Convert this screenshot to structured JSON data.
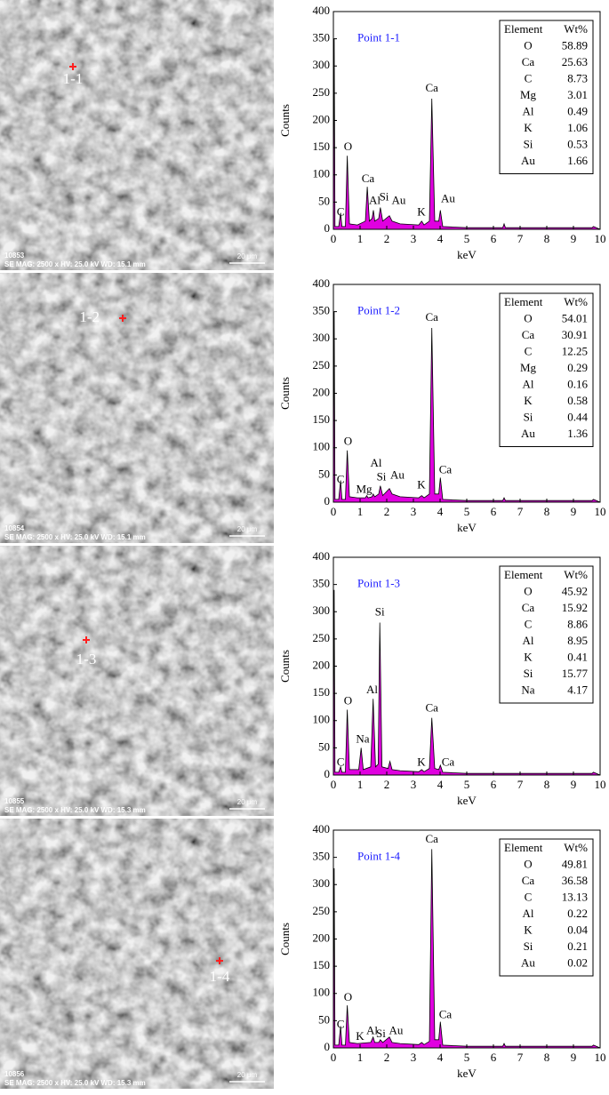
{
  "images": [
    {
      "id": "10853",
      "info": "SE  MAG: 2500 x HV: 25.0 kV  WD: 15.1 mm",
      "scale": "20 μm",
      "point": "1-1"
    },
    {
      "id": "10854",
      "info": "SE  MAG: 2500 x HV: 25.0 kV  WD: 15.1 mm",
      "scale": "20 μm",
      "point": "1-2"
    },
    {
      "id": "10855",
      "info": "SE  MAG: 2500 x HV: 25.0 kV  WD: 15.3 mm",
      "scale": "20 μm",
      "point": "1-3"
    },
    {
      "id": "10856",
      "info": "SE  MAG: 2500 x HV: 25.0 kV  WD: 15.3 mm",
      "scale": "20 μm",
      "point": "1-4"
    }
  ],
  "chart_data": [
    {
      "type": "area",
      "title": "Point 1-1",
      "xlabel": "keV",
      "ylabel": "Counts",
      "color": "#e000e0",
      "x": [
        0,
        0.03,
        0.06,
        0.2,
        0.27,
        0.32,
        0.45,
        0.52,
        0.6,
        0.9,
        1.2,
        1.27,
        1.35,
        1.45,
        1.5,
        1.55,
        1.7,
        1.76,
        1.85,
        2.1,
        2.2,
        2.5,
        3.2,
        3.31,
        3.4,
        3.6,
        3.69,
        3.8,
        3.95,
        4.01,
        4.1,
        5,
        6.35,
        6.4,
        6.45,
        9.7,
        9.75,
        10
      ],
      "values": [
        0,
        350,
        5,
        5,
        30,
        5,
        5,
        135,
        10,
        8,
        15,
        78,
        15,
        20,
        35,
        15,
        20,
        40,
        15,
        25,
        15,
        10,
        8,
        15,
        8,
        15,
        240,
        15,
        15,
        35,
        5,
        3,
        3,
        10,
        3,
        3,
        5,
        0
      ],
      "annotations": [
        {
          "text": "C",
          "x": 0.27,
          "y": 20
        },
        {
          "text": "O",
          "x": 0.55,
          "y": 140
        },
        {
          "text": "Ca",
          "x": 1.3,
          "y": 82
        },
        {
          "text": "Al",
          "x": 1.55,
          "y": 42
        },
        {
          "text": "Si",
          "x": 1.9,
          "y": 48
        },
        {
          "text": "Au",
          "x": 2.45,
          "y": 42
        },
        {
          "text": "K",
          "x": 3.3,
          "y": 20
        },
        {
          "text": "Ca",
          "x": 3.69,
          "y": 248
        },
        {
          "text": "Au",
          "x": 4.3,
          "y": 45
        }
      ],
      "xlim": [
        0,
        10
      ],
      "ylim": [
        0,
        400
      ],
      "xticks": [
        0,
        1,
        2,
        3,
        4,
        5,
        6,
        7,
        8,
        9,
        10
      ],
      "yticks": [
        0,
        50,
        100,
        150,
        200,
        250,
        300,
        350,
        400
      ],
      "table": {
        "header": [
          "Element",
          "Wt%"
        ],
        "rows": [
          [
            "O",
            "58.89"
          ],
          [
            "Ca",
            "25.63"
          ],
          [
            "C",
            "8.73"
          ],
          [
            "Mg",
            "3.01"
          ],
          [
            "Al",
            "0.49"
          ],
          [
            "K",
            "1.06"
          ],
          [
            "Si",
            "0.53"
          ],
          [
            "Au",
            "1.66"
          ]
        ]
      }
    },
    {
      "type": "area",
      "title": "Point 1-2",
      "xlabel": "keV",
      "ylabel": "Counts",
      "color": "#e000e0",
      "x": [
        0,
        0.03,
        0.06,
        0.2,
        0.27,
        0.32,
        0.45,
        0.52,
        0.6,
        0.9,
        1.2,
        1.25,
        1.3,
        1.45,
        1.49,
        1.55,
        1.7,
        1.76,
        1.85,
        2.1,
        2.2,
        2.5,
        3.2,
        3.31,
        3.4,
        3.6,
        3.69,
        3.8,
        3.95,
        4.01,
        4.1,
        5,
        6.35,
        6.4,
        6.45,
        9.7,
        9.75,
        10
      ],
      "values": [
        0,
        350,
        5,
        5,
        40,
        5,
        5,
        95,
        10,
        8,
        8,
        12,
        8,
        10,
        15,
        10,
        15,
        30,
        12,
        25,
        15,
        10,
        8,
        12,
        8,
        15,
        320,
        15,
        15,
        45,
        5,
        3,
        3,
        8,
        3,
        3,
        5,
        0
      ],
      "annotations": [
        {
          "text": "C",
          "x": 0.27,
          "y": 30
        },
        {
          "text": "O",
          "x": 0.55,
          "y": 100
        },
        {
          "text": "Mg",
          "x": 1.15,
          "y": 12
        },
        {
          "text": "Al",
          "x": 1.6,
          "y": 60
        },
        {
          "text": "Si",
          "x": 1.8,
          "y": 35
        },
        {
          "text": "Au",
          "x": 2.4,
          "y": 38
        },
        {
          "text": "K",
          "x": 3.3,
          "y": 20
        },
        {
          "text": "Ca",
          "x": 3.69,
          "y": 328
        },
        {
          "text": "Ca",
          "x": 4.2,
          "y": 48
        }
      ],
      "xlim": [
        0,
        10
      ],
      "ylim": [
        0,
        400
      ],
      "xticks": [
        0,
        1,
        2,
        3,
        4,
        5,
        6,
        7,
        8,
        9,
        10
      ],
      "yticks": [
        0,
        50,
        100,
        150,
        200,
        250,
        300,
        350,
        400
      ],
      "table": {
        "header": [
          "Element",
          "Wt%"
        ],
        "rows": [
          [
            "O",
            "54.01"
          ],
          [
            "Ca",
            "30.91"
          ],
          [
            "C",
            "12.25"
          ],
          [
            "Mg",
            "0.29"
          ],
          [
            "Al",
            "0.16"
          ],
          [
            "K",
            "0.58"
          ],
          [
            "Si",
            "0.44"
          ],
          [
            "Au",
            "1.36"
          ]
        ]
      }
    },
    {
      "type": "area",
      "title": "Point 1-3",
      "xlabel": "keV",
      "ylabel": "Counts",
      "color": "#e000e0",
      "x": [
        0,
        0.03,
        0.06,
        0.2,
        0.27,
        0.32,
        0.45,
        0.52,
        0.6,
        0.95,
        1.04,
        1.12,
        1.4,
        1.49,
        1.58,
        1.68,
        1.74,
        1.82,
        2.05,
        2.12,
        2.2,
        2.5,
        3.2,
        3.31,
        3.4,
        3.6,
        3.69,
        3.8,
        3.95,
        4.01,
        4.1,
        5,
        9.7,
        9.75,
        10
      ],
      "values": [
        0,
        340,
        5,
        5,
        15,
        5,
        5,
        120,
        10,
        10,
        50,
        10,
        15,
        140,
        15,
        20,
        280,
        15,
        12,
        25,
        10,
        8,
        6,
        10,
        6,
        12,
        105,
        12,
        10,
        18,
        5,
        3,
        3,
        5,
        0
      ],
      "annotations": [
        {
          "text": "C",
          "x": 0.27,
          "y": 12
        },
        {
          "text": "O",
          "x": 0.55,
          "y": 125
        },
        {
          "text": "Na",
          "x": 1.1,
          "y": 55
        },
        {
          "text": "Al",
          "x": 1.45,
          "y": 145
        },
        {
          "text": "Si",
          "x": 1.74,
          "y": 288
        },
        {
          "text": "K",
          "x": 3.3,
          "y": 12
        },
        {
          "text": "Ca",
          "x": 3.69,
          "y": 112
        },
        {
          "text": "Ca",
          "x": 4.3,
          "y": 12
        }
      ],
      "xlim": [
        0,
        10
      ],
      "ylim": [
        0,
        400
      ],
      "xticks": [
        0,
        1,
        2,
        3,
        4,
        5,
        6,
        7,
        8,
        9,
        10
      ],
      "yticks": [
        0,
        50,
        100,
        150,
        200,
        250,
        300,
        350,
        400
      ],
      "table": {
        "header": [
          "Element",
          "Wt%"
        ],
        "rows": [
          [
            "O",
            "45.92"
          ],
          [
            "Ca",
            "15.92"
          ],
          [
            "C",
            "8.86"
          ],
          [
            "Al",
            "8.95"
          ],
          [
            "K",
            "0.41"
          ],
          [
            "Si",
            "15.77"
          ],
          [
            "Na",
            "4.17"
          ]
        ]
      }
    },
    {
      "type": "area",
      "title": "Point 1-4",
      "xlabel": "keV",
      "ylabel": "Counts",
      "color": "#e000e0",
      "x": [
        0,
        0.03,
        0.06,
        0.2,
        0.27,
        0.32,
        0.45,
        0.52,
        0.6,
        0.9,
        1.4,
        1.49,
        1.55,
        1.7,
        1.76,
        1.85,
        2.1,
        2.2,
        2.5,
        3.2,
        3.31,
        3.4,
        3.6,
        3.69,
        3.8,
        3.95,
        4.01,
        4.1,
        5,
        6.35,
        6.4,
        6.45,
        9.7,
        9.75,
        10
      ],
      "values": [
        0,
        330,
        5,
        5,
        40,
        5,
        5,
        78,
        10,
        8,
        10,
        20,
        10,
        10,
        15,
        10,
        20,
        10,
        8,
        6,
        10,
        6,
        12,
        365,
        15,
        15,
        48,
        5,
        3,
        3,
        8,
        3,
        3,
        5,
        0
      ],
      "annotations": [
        {
          "text": "C",
          "x": 0.27,
          "y": 32
        },
        {
          "text": "O",
          "x": 0.55,
          "y": 82
        },
        {
          "text": "K",
          "x": 1.0,
          "y": 10
        },
        {
          "text": "Al",
          "x": 1.45,
          "y": 20
        },
        {
          "text": "Si",
          "x": 1.78,
          "y": 15
        },
        {
          "text": "Au",
          "x": 2.35,
          "y": 20
        },
        {
          "text": "Ca",
          "x": 3.69,
          "y": 372
        },
        {
          "text": "Ca",
          "x": 4.2,
          "y": 50
        }
      ],
      "xlim": [
        0,
        10
      ],
      "ylim": [
        0,
        400
      ],
      "xticks": [
        0,
        1,
        2,
        3,
        4,
        5,
        6,
        7,
        8,
        9,
        10
      ],
      "yticks": [
        0,
        50,
        100,
        150,
        200,
        250,
        300,
        350,
        400
      ],
      "table": {
        "header": [
          "Element",
          "Wt%"
        ],
        "rows": [
          [
            "O",
            "49.81"
          ],
          [
            "Ca",
            "36.58"
          ],
          [
            "C",
            "13.13"
          ],
          [
            "Al",
            "0.22"
          ],
          [
            "K",
            "0.04"
          ],
          [
            "Si",
            "0.21"
          ],
          [
            "Au",
            "0.02"
          ]
        ]
      }
    }
  ]
}
